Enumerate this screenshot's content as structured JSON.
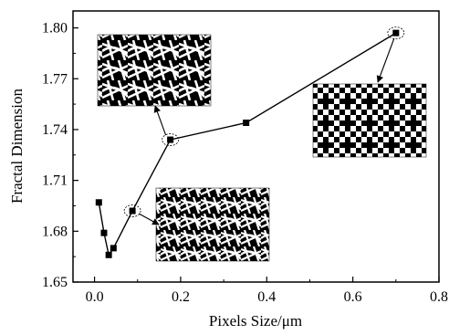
{
  "chart_data": {
    "type": "line",
    "title": "",
    "xlabel": "Pixels Size/μm",
    "ylabel": "Fractal Dimension",
    "xlim": [
      -0.05,
      0.8
    ],
    "ylim": [
      1.65,
      1.81
    ],
    "x_ticks": [
      "0.0",
      "0.2",
      "0.4",
      "0.6",
      "0.8"
    ],
    "y_ticks": [
      "1.65",
      "1.68",
      "1.71",
      "1.74",
      "1.77",
      "1.80"
    ],
    "grid": false,
    "legend": "none",
    "series": [
      {
        "color": "#000000",
        "marker": "square",
        "points": [
          {
            "x": 0.01,
            "y": 1.697
          },
          {
            "x": 0.022,
            "y": 1.679
          },
          {
            "x": 0.033,
            "y": 1.666
          },
          {
            "x": 0.044,
            "y": 1.67
          },
          {
            "x": 0.088,
            "y": 1.692
          },
          {
            "x": 0.176,
            "y": 1.734
          },
          {
            "x": 0.352,
            "y": 1.744
          },
          {
            "x": 0.7,
            "y": 1.797
          }
        ]
      }
    ],
    "annotations": [
      {
        "target_point": 4,
        "kind": "inset-binary-image",
        "pattern": "fine-fibers"
      },
      {
        "target_point": 5,
        "kind": "inset-binary-image",
        "pattern": "medium-fibers"
      },
      {
        "target_point": 7,
        "kind": "inset-binary-image",
        "pattern": "coarse-pixels"
      }
    ]
  }
}
